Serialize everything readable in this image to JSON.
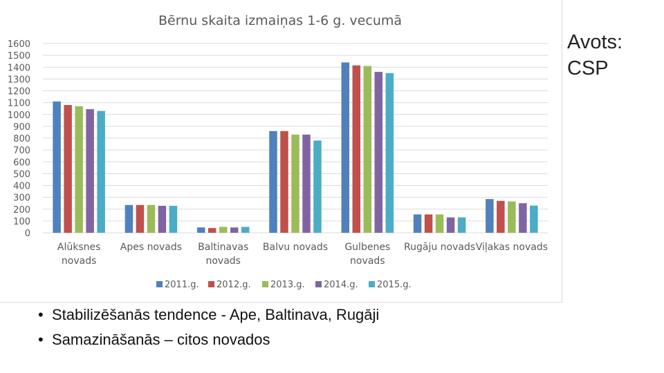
{
  "source_note": "Avots: CSP",
  "bullets": [
    "Stabilizēšanās tendence - Ape, Baltinava, Rugāji",
    "Samazināšanās – citos novados"
  ],
  "chart_data": {
    "type": "bar",
    "title": "Bērnu skaita izmaiņas 1-6 g. vecumā",
    "xlabel": "",
    "ylabel": "",
    "ylim": [
      0,
      1600
    ],
    "yticks": [
      0,
      100,
      200,
      300,
      400,
      500,
      600,
      700,
      800,
      900,
      1000,
      1100,
      1200,
      1300,
      1400,
      1500,
      1600
    ],
    "grid": true,
    "legend_position": "bottom",
    "categories": [
      [
        "Alūksnes",
        "novads"
      ],
      [
        "Apes novads"
      ],
      [
        "Baltinavas",
        "novads"
      ],
      [
        "Balvu novads"
      ],
      [
        "Gulbenes",
        "novads"
      ],
      [
        "Rugāju novads"
      ],
      [
        "Viļakas novads"
      ]
    ],
    "series": [
      {
        "name": "2011.g.",
        "color": "#4f81bd",
        "values": [
          1110,
          235,
          45,
          860,
          1440,
          155,
          285
        ]
      },
      {
        "name": "2012.g.",
        "color": "#c0504d",
        "values": [
          1080,
          235,
          40,
          860,
          1415,
          155,
          270
        ]
      },
      {
        "name": "2013.g.",
        "color": "#9bbb59",
        "values": [
          1070,
          235,
          50,
          830,
          1410,
          155,
          265
        ]
      },
      {
        "name": "2014.g.",
        "color": "#8064a2",
        "values": [
          1045,
          228,
          45,
          830,
          1360,
          130,
          250
        ]
      },
      {
        "name": "2015.g.",
        "color": "#4bacc6",
        "values": [
          1030,
          228,
          50,
          780,
          1350,
          130,
          230
        ]
      }
    ]
  }
}
